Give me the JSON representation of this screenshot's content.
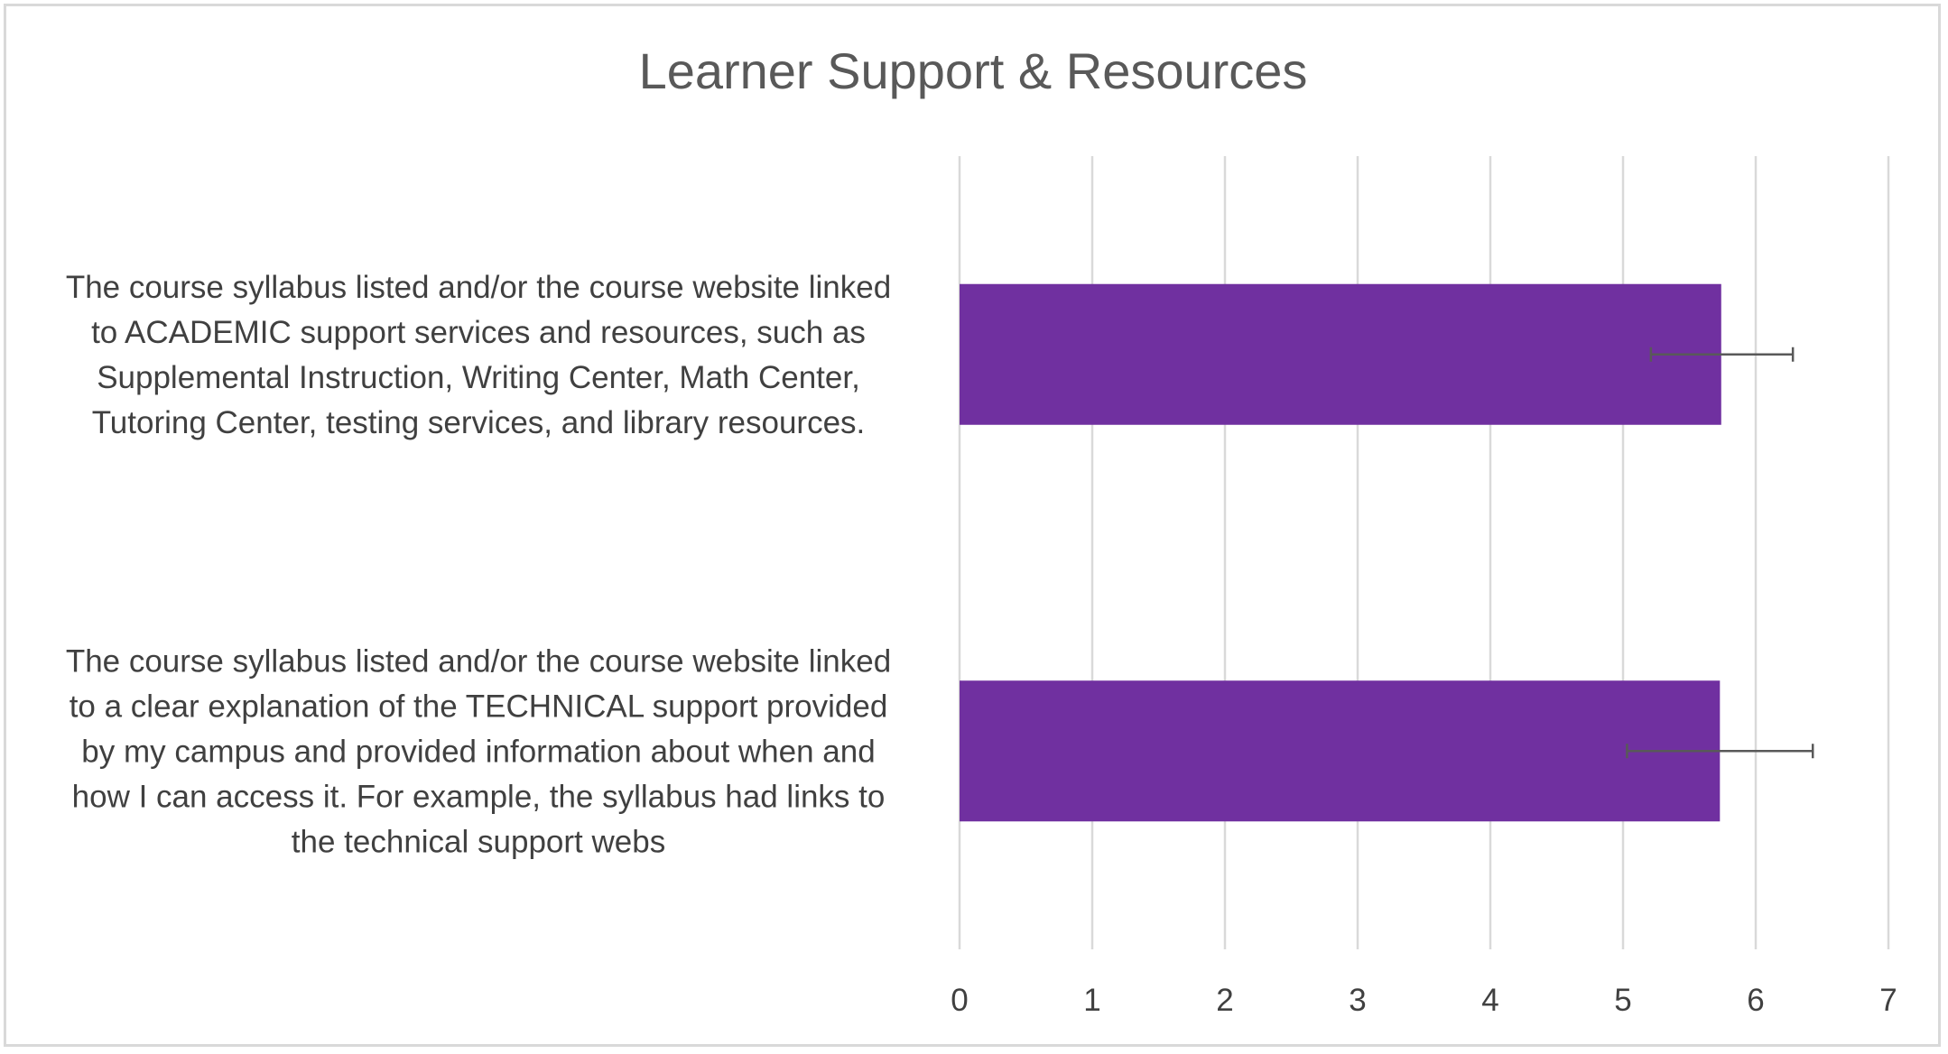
{
  "chart_data": {
    "type": "bar",
    "orientation": "horizontal",
    "title": "Learner Support & Resources",
    "xlabel": "",
    "ylabel": "",
    "categories": [
      "The course syllabus listed and/or the course website linked to ACADEMIC support services and resources, such as Supplemental Instruction, Writing Center, Math Center, Tutoring Center, testing services, and library resources.",
      "The course syllabus listed and/or the course website linked to a clear explanation of the TECHNICAL support provided by my campus and provided information about when and how I can access it. For example, the syllabus had links to the technical support webs"
    ],
    "category_lines": [
      [
        "The course syllabus listed and/or the course website linked",
        "to ACADEMIC support services and resources, such as",
        "Supplemental Instruction, Writing Center, Math Center,",
        "Tutoring Center, testing services, and library resources."
      ],
      [
        "The course syllabus listed and/or the course website linked",
        "to a clear explanation of the TECHNICAL support provided",
        "by my campus and provided information about when and",
        "how I can access it. For example, the syllabus had links to",
        "the technical support webs"
      ]
    ],
    "values": [
      5.74,
      5.73
    ],
    "error_low": [
      5.21,
      5.03
    ],
    "error_high": [
      6.28,
      6.43
    ],
    "xlim": [
      0,
      7
    ],
    "xticks": [
      0,
      1,
      2,
      3,
      4,
      5,
      6,
      7
    ],
    "xtick_labels": [
      "0",
      "1",
      "2",
      "3",
      "4",
      "5",
      "6",
      "7"
    ],
    "grid": true,
    "legend": "none"
  },
  "colors": {
    "bar": "#7030a0",
    "gridline": "#d9d9d9",
    "error_bar": "#595959",
    "title": "#595959",
    "text": "#404040",
    "frame": "#d9d9d9"
  }
}
